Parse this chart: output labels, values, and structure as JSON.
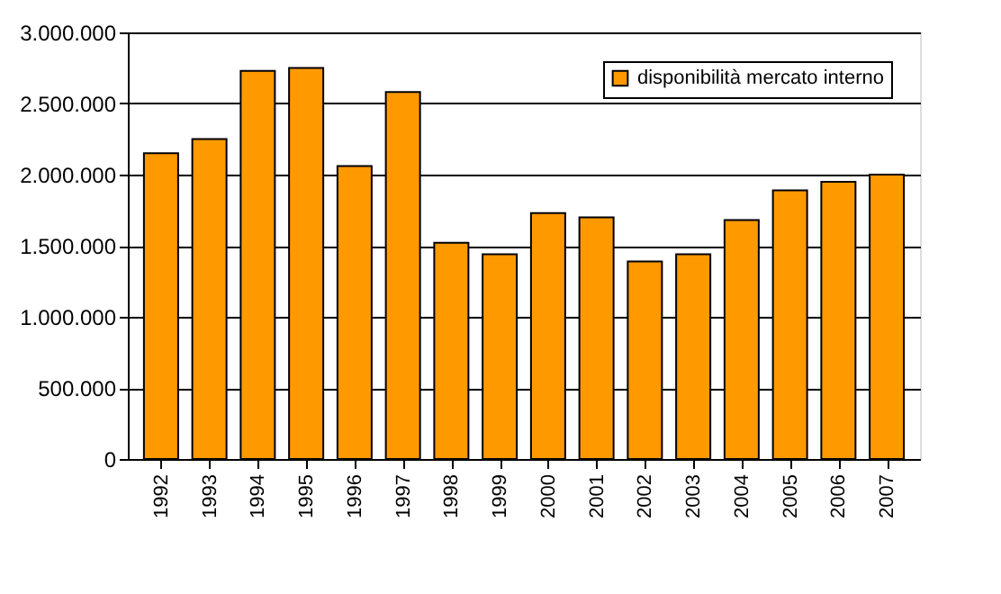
{
  "chart_data": {
    "type": "bar",
    "categories": [
      "1992",
      "1993",
      "1994",
      "1995",
      "1996",
      "1997",
      "1998",
      "1999",
      "2000",
      "2001",
      "2002",
      "2003",
      "2004",
      "2005",
      "2006",
      "2007"
    ],
    "series": [
      {
        "name": "disponibilità mercato interno",
        "color": "#ff9900",
        "values": [
          2150000,
          2250000,
          2730000,
          2750000,
          2060000,
          2580000,
          1520000,
          1440000,
          1730000,
          1700000,
          1390000,
          1440000,
          1680000,
          1890000,
          1950000,
          2000000
        ]
      }
    ],
    "ylim": [
      0,
      3000000
    ],
    "yticks": [
      {
        "value": 0,
        "label": "0"
      },
      {
        "value": 500000,
        "label": "500.000"
      },
      {
        "value": 1000000,
        "label": "1.000.000"
      },
      {
        "value": 1500000,
        "label": "1.500.000"
      },
      {
        "value": 2000000,
        "label": "2.000.000"
      },
      {
        "value": 2500000,
        "label": "2.500.000"
      },
      {
        "value": 3000000,
        "label": "3.000.000"
      }
    ],
    "grid": "y",
    "legend": "top right"
  }
}
